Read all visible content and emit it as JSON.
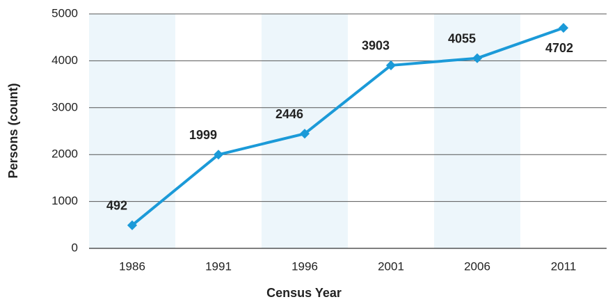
{
  "chart_data": {
    "type": "line",
    "categories": [
      "1986",
      "1991",
      "1996",
      "2001",
      "2006",
      "2011"
    ],
    "series": [
      {
        "name": "Persons",
        "color": "#1b9ad8",
        "values": [
          492,
          1999,
          2446,
          3903,
          4055,
          4702
        ]
      }
    ],
    "xlabel": "Census Year",
    "ylabel": "Persons (count)",
    "ylim": [
      0,
      5000
    ],
    "yticks": [
      0,
      1000,
      2000,
      3000,
      4000,
      5000
    ],
    "grid": true
  }
}
